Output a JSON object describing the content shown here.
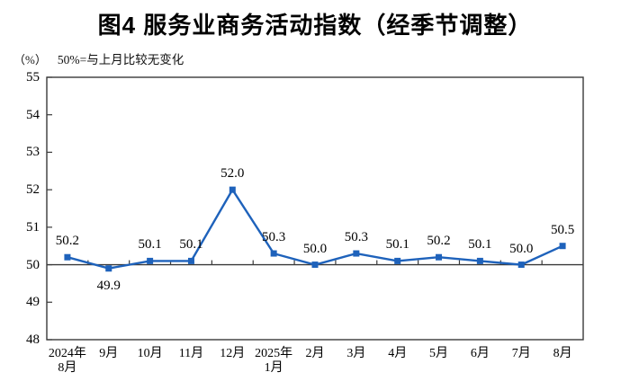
{
  "title": "图4 服务业商务活动指数（经季节调整）",
  "unit_label": "（%）",
  "note": "50%=与上月比较无变化",
  "chart_data": {
    "type": "line",
    "series_name": "服务业商务活动指数",
    "categories": [
      "2024年\n8月",
      "9月",
      "10月",
      "11月",
      "12月",
      "2025年\n1月",
      "2月",
      "3月",
      "4月",
      "5月",
      "6月",
      "7月",
      "8月"
    ],
    "values": [
      50.2,
      49.9,
      50.1,
      50.1,
      52.0,
      50.3,
      50.0,
      50.3,
      50.1,
      50.2,
      50.1,
      50.0,
      50.5
    ],
    "data_labels": [
      "50.2",
      "49.9",
      "50.1",
      "50.1",
      "52.0",
      "50.3",
      "50.0",
      "50.3",
      "50.1",
      "50.2",
      "50.1",
      "50.0",
      "50.5"
    ],
    "ylim": [
      48,
      55
    ],
    "ytick_step": 1,
    "ytick_labels": [
      "48",
      "49",
      "50",
      "51",
      "52",
      "53",
      "54",
      "55"
    ],
    "baseline_value": 50,
    "grid": false,
    "legend": "none",
    "marker": "square",
    "line_color": "#1E62BB",
    "marker_color": "#1E62BB",
    "axis_color": "#3a3a3a",
    "text_color": "#000000"
  }
}
